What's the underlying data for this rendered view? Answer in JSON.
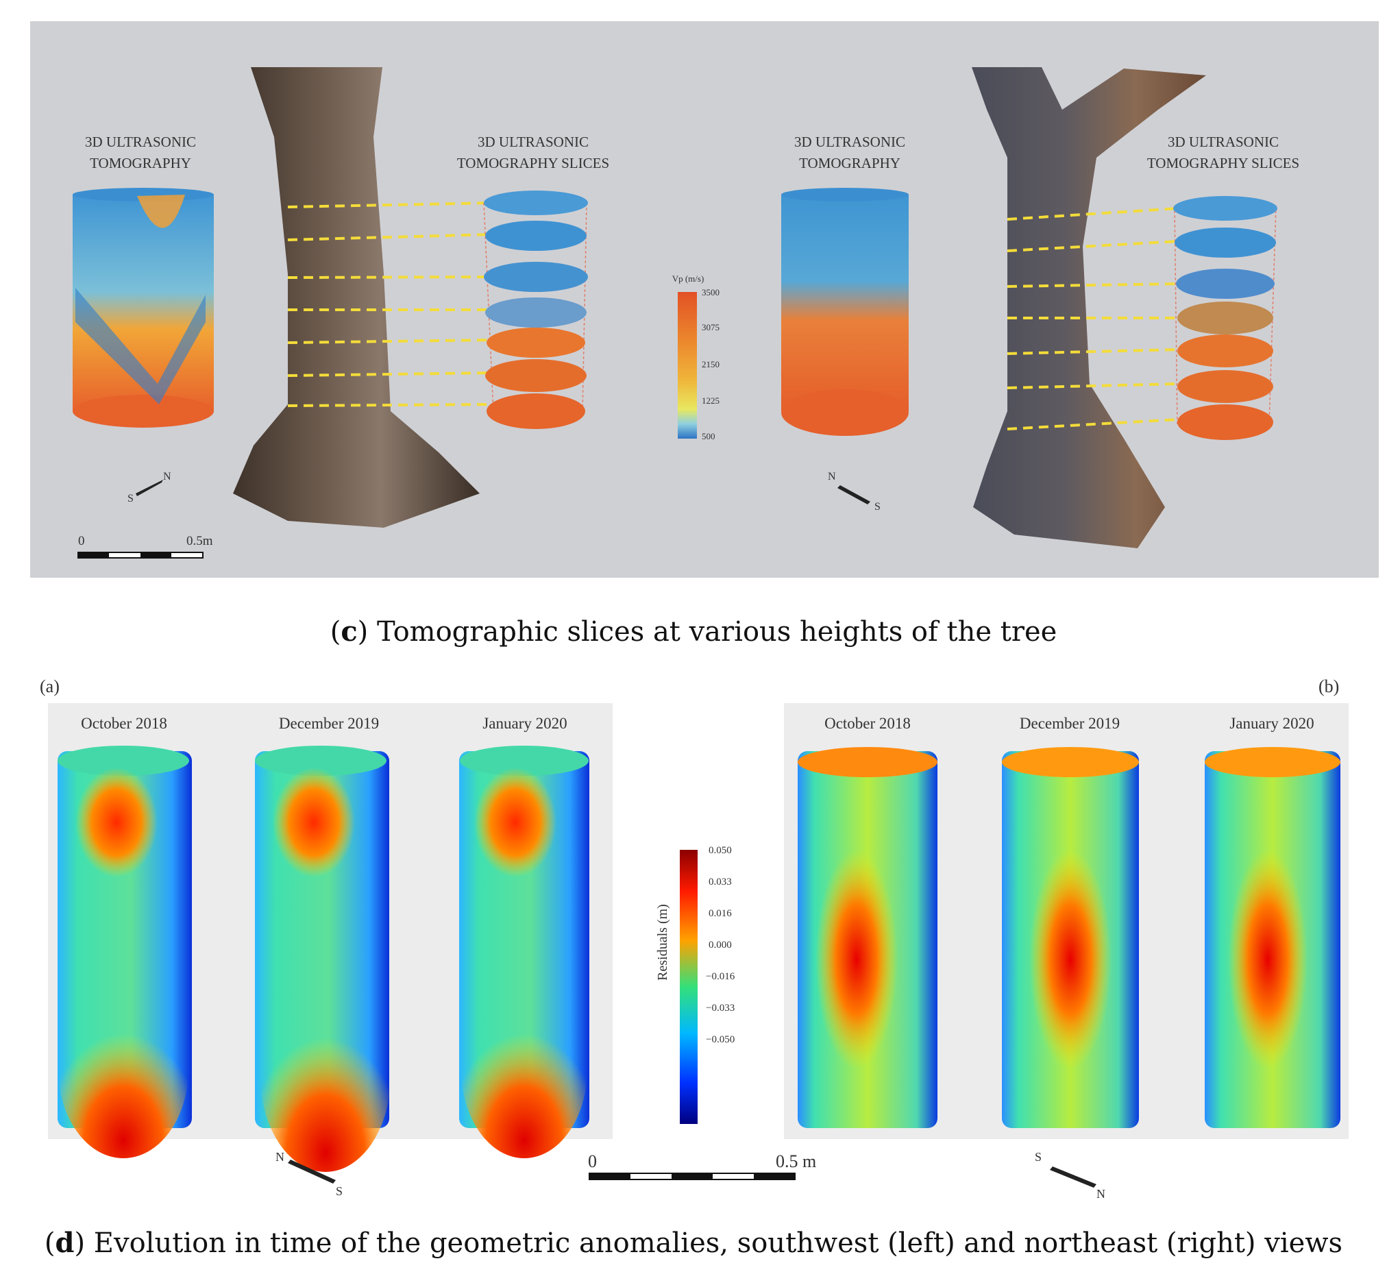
{
  "panel_c": {
    "left_tomo_title": [
      "3D ULTRASONIC",
      "TOMOGRAPHY"
    ],
    "left_slices_title": [
      "3D ULTRASONIC",
      "TOMOGRAPHY SLICES"
    ],
    "right_tomo_title": [
      "3D ULTRASONIC",
      "TOMOGRAPHY"
    ],
    "right_slices_title": [
      "3D ULTRASONIC",
      "TOMOGRAPHY SLICES"
    ],
    "colorbar_title": "Vp (m/s)",
    "colorbar_ticks": [
      "3500",
      "3075",
      "2150",
      "1225",
      "500"
    ],
    "scale_start": "0",
    "scale_end": "0.5m",
    "compass_n": "N",
    "compass_s": "S",
    "caption_letter": "c",
    "caption_text": ") Tomographic slices at various heights of the tree",
    "colors": {
      "background": "#cfd0d4",
      "high": "#e8602a",
      "mid": "#f0a62e",
      "low": "#3a8fd0"
    }
  },
  "panel_d": {
    "label_a": "(a)",
    "label_b": "(b)",
    "dates": [
      "October 2018",
      "December 2019",
      "January 2020"
    ],
    "colorbar_title": "Residuals (m)",
    "colorbar_ticks": [
      "0.050",
      "0.033",
      "0.016",
      "0.000",
      "−0.016",
      "−0.033",
      "−0.050"
    ],
    "scale_start": "0",
    "scale_end": "0.5 m",
    "compass_n": "N",
    "compass_s": "S",
    "caption_letter": "d",
    "caption_text": ") Evolution in time of the geometric anomalies, southwest (left) and northeast (right) views",
    "colors": {
      "background": "#ececec"
    }
  }
}
